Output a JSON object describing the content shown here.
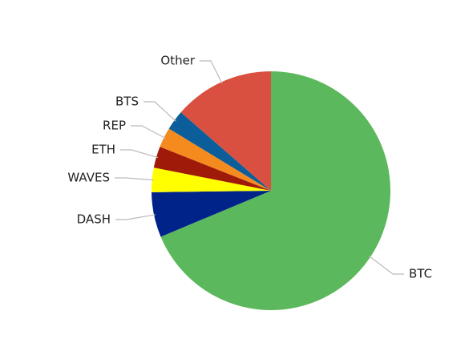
{
  "chart_data": {
    "type": "pie",
    "categories": [
      "BTC",
      "DASH",
      "WAVES",
      "ETH",
      "REP",
      "BTS",
      "Other"
    ],
    "values": [
      68.7,
      6.1,
      3.3,
      2.9,
      2.7,
      2.7,
      13.6
    ],
    "colors": [
      "#5cb85c",
      "#00238a",
      "#ffff00",
      "#a01a0a",
      "#f58a1f",
      "#0b5e9a",
      "#d95040"
    ]
  }
}
